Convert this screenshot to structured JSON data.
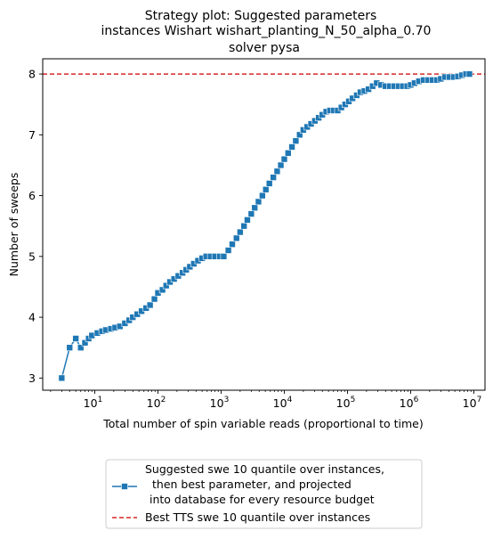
{
  "chart_data": {
    "type": "line",
    "title": "Strategy plot: Suggested parameters\ninstances Wishart wishart_planting_N_50_alpha_0.70\nsolver pysa",
    "title_lines": [
      "Strategy plot: Suggested parameters",
      "instances Wishart wishart_planting_N_50_alpha_0.70",
      "solver pysa"
    ],
    "xlabel": "Total number of spin variable reads (proportional to time)",
    "ylabel": "Number of sweeps",
    "xscale": "log",
    "xlim": [
      1.5,
      15000000
    ],
    "ylim": [
      2.8,
      8.25
    ],
    "x_ticks": [
      {
        "value": 10,
        "base": "10",
        "exp": "1"
      },
      {
        "value": 100,
        "base": "10",
        "exp": "2"
      },
      {
        "value": 1000,
        "base": "10",
        "exp": "3"
      },
      {
        "value": 10000,
        "base": "10",
        "exp": "4"
      },
      {
        "value": 100000,
        "base": "10",
        "exp": "5"
      },
      {
        "value": 1000000,
        "base": "10",
        "exp": "6"
      },
      {
        "value": 10000000,
        "base": "10",
        "exp": "7"
      }
    ],
    "y_ticks": [
      "3",
      "4",
      "5",
      "6",
      "7",
      "8"
    ],
    "grid": false,
    "legend_position": "below",
    "colors": {
      "series": "#1f77b4",
      "reference": "#d62728"
    },
    "series": [
      {
        "name": "Suggested swe 10 quantile over instances,\n then best parameter, and projected\n into database for every resource budget",
        "legend_lines": [
          "Suggested swe 10 quantile over instances,",
          "then best parameter, and projected",
          "into database for every resource budget"
        ],
        "marker": "square",
        "points": [
          [
            3,
            3.0
          ],
          [
            4,
            3.5
          ],
          [
            5,
            3.65
          ],
          [
            6,
            3.5
          ],
          [
            7,
            3.58
          ],
          [
            8,
            3.65
          ],
          [
            9,
            3.7
          ],
          [
            11,
            3.74
          ],
          [
            13,
            3.77
          ],
          [
            15,
            3.79
          ],
          [
            18,
            3.81
          ],
          [
            21,
            3.83
          ],
          [
            25,
            3.85
          ],
          [
            30,
            3.9
          ],
          [
            35,
            3.95
          ],
          [
            40,
            4.0
          ],
          [
            47,
            4.05
          ],
          [
            55,
            4.1
          ],
          [
            65,
            4.15
          ],
          [
            75,
            4.2
          ],
          [
            88,
            4.3
          ],
          [
            100,
            4.4
          ],
          [
            118,
            4.45
          ],
          [
            135,
            4.52
          ],
          [
            155,
            4.58
          ],
          [
            180,
            4.63
          ],
          [
            210,
            4.68
          ],
          [
            245,
            4.73
          ],
          [
            280,
            4.78
          ],
          [
            320,
            4.83
          ],
          [
            370,
            4.88
          ],
          [
            430,
            4.93
          ],
          [
            500,
            4.97
          ],
          [
            580,
            5.0
          ],
          [
            680,
            5.0
          ],
          [
            800,
            5.0
          ],
          [
            950,
            5.0
          ],
          [
            1100,
            5.0
          ],
          [
            1300,
            5.1
          ],
          [
            1500,
            5.2
          ],
          [
            1750,
            5.3
          ],
          [
            2000,
            5.4
          ],
          [
            2300,
            5.5
          ],
          [
            2600,
            5.6
          ],
          [
            3000,
            5.7
          ],
          [
            3400,
            5.8
          ],
          [
            3900,
            5.9
          ],
          [
            4500,
            6.0
          ],
          [
            5100,
            6.1
          ],
          [
            5800,
            6.2
          ],
          [
            6700,
            6.3
          ],
          [
            7700,
            6.4
          ],
          [
            8800,
            6.5
          ],
          [
            10000,
            6.6
          ],
          [
            11500,
            6.7
          ],
          [
            13200,
            6.8
          ],
          [
            15200,
            6.9
          ],
          [
            17500,
            7.0
          ],
          [
            20000,
            7.08
          ],
          [
            23000,
            7.13
          ],
          [
            26500,
            7.18
          ],
          [
            30500,
            7.23
          ],
          [
            35000,
            7.28
          ],
          [
            40000,
            7.33
          ],
          [
            46000,
            7.38
          ],
          [
            53000,
            7.4
          ],
          [
            61000,
            7.4
          ],
          [
            70000,
            7.4
          ],
          [
            80000,
            7.45
          ],
          [
            92000,
            7.5
          ],
          [
            105000,
            7.55
          ],
          [
            120000,
            7.6
          ],
          [
            140000,
            7.65
          ],
          [
            160000,
            7.7
          ],
          [
            185000,
            7.72
          ],
          [
            215000,
            7.75
          ],
          [
            250000,
            7.8
          ],
          [
            290000,
            7.85
          ],
          [
            340000,
            7.82
          ],
          [
            400000,
            7.8
          ],
          [
            470000,
            7.8
          ],
          [
            550000,
            7.8
          ],
          [
            650000,
            7.8
          ],
          [
            750000,
            7.8
          ],
          [
            880000,
            7.8
          ],
          [
            1000000,
            7.82
          ],
          [
            1150000,
            7.85
          ],
          [
            1350000,
            7.88
          ],
          [
            1600000,
            7.9
          ],
          [
            1900000,
            7.9
          ],
          [
            2200000,
            7.9
          ],
          [
            2600000,
            7.9
          ],
          [
            3000000,
            7.92
          ],
          [
            3500000,
            7.95
          ],
          [
            4100000,
            7.95
          ],
          [
            4800000,
            7.95
          ],
          [
            5600000,
            7.96
          ],
          [
            6500000,
            7.98
          ],
          [
            7500000,
            8.0
          ],
          [
            8500000,
            8.0
          ]
        ]
      },
      {
        "name": "Best TTS swe 10 quantile over instances",
        "style": "dashed",
        "y": 8
      }
    ]
  }
}
